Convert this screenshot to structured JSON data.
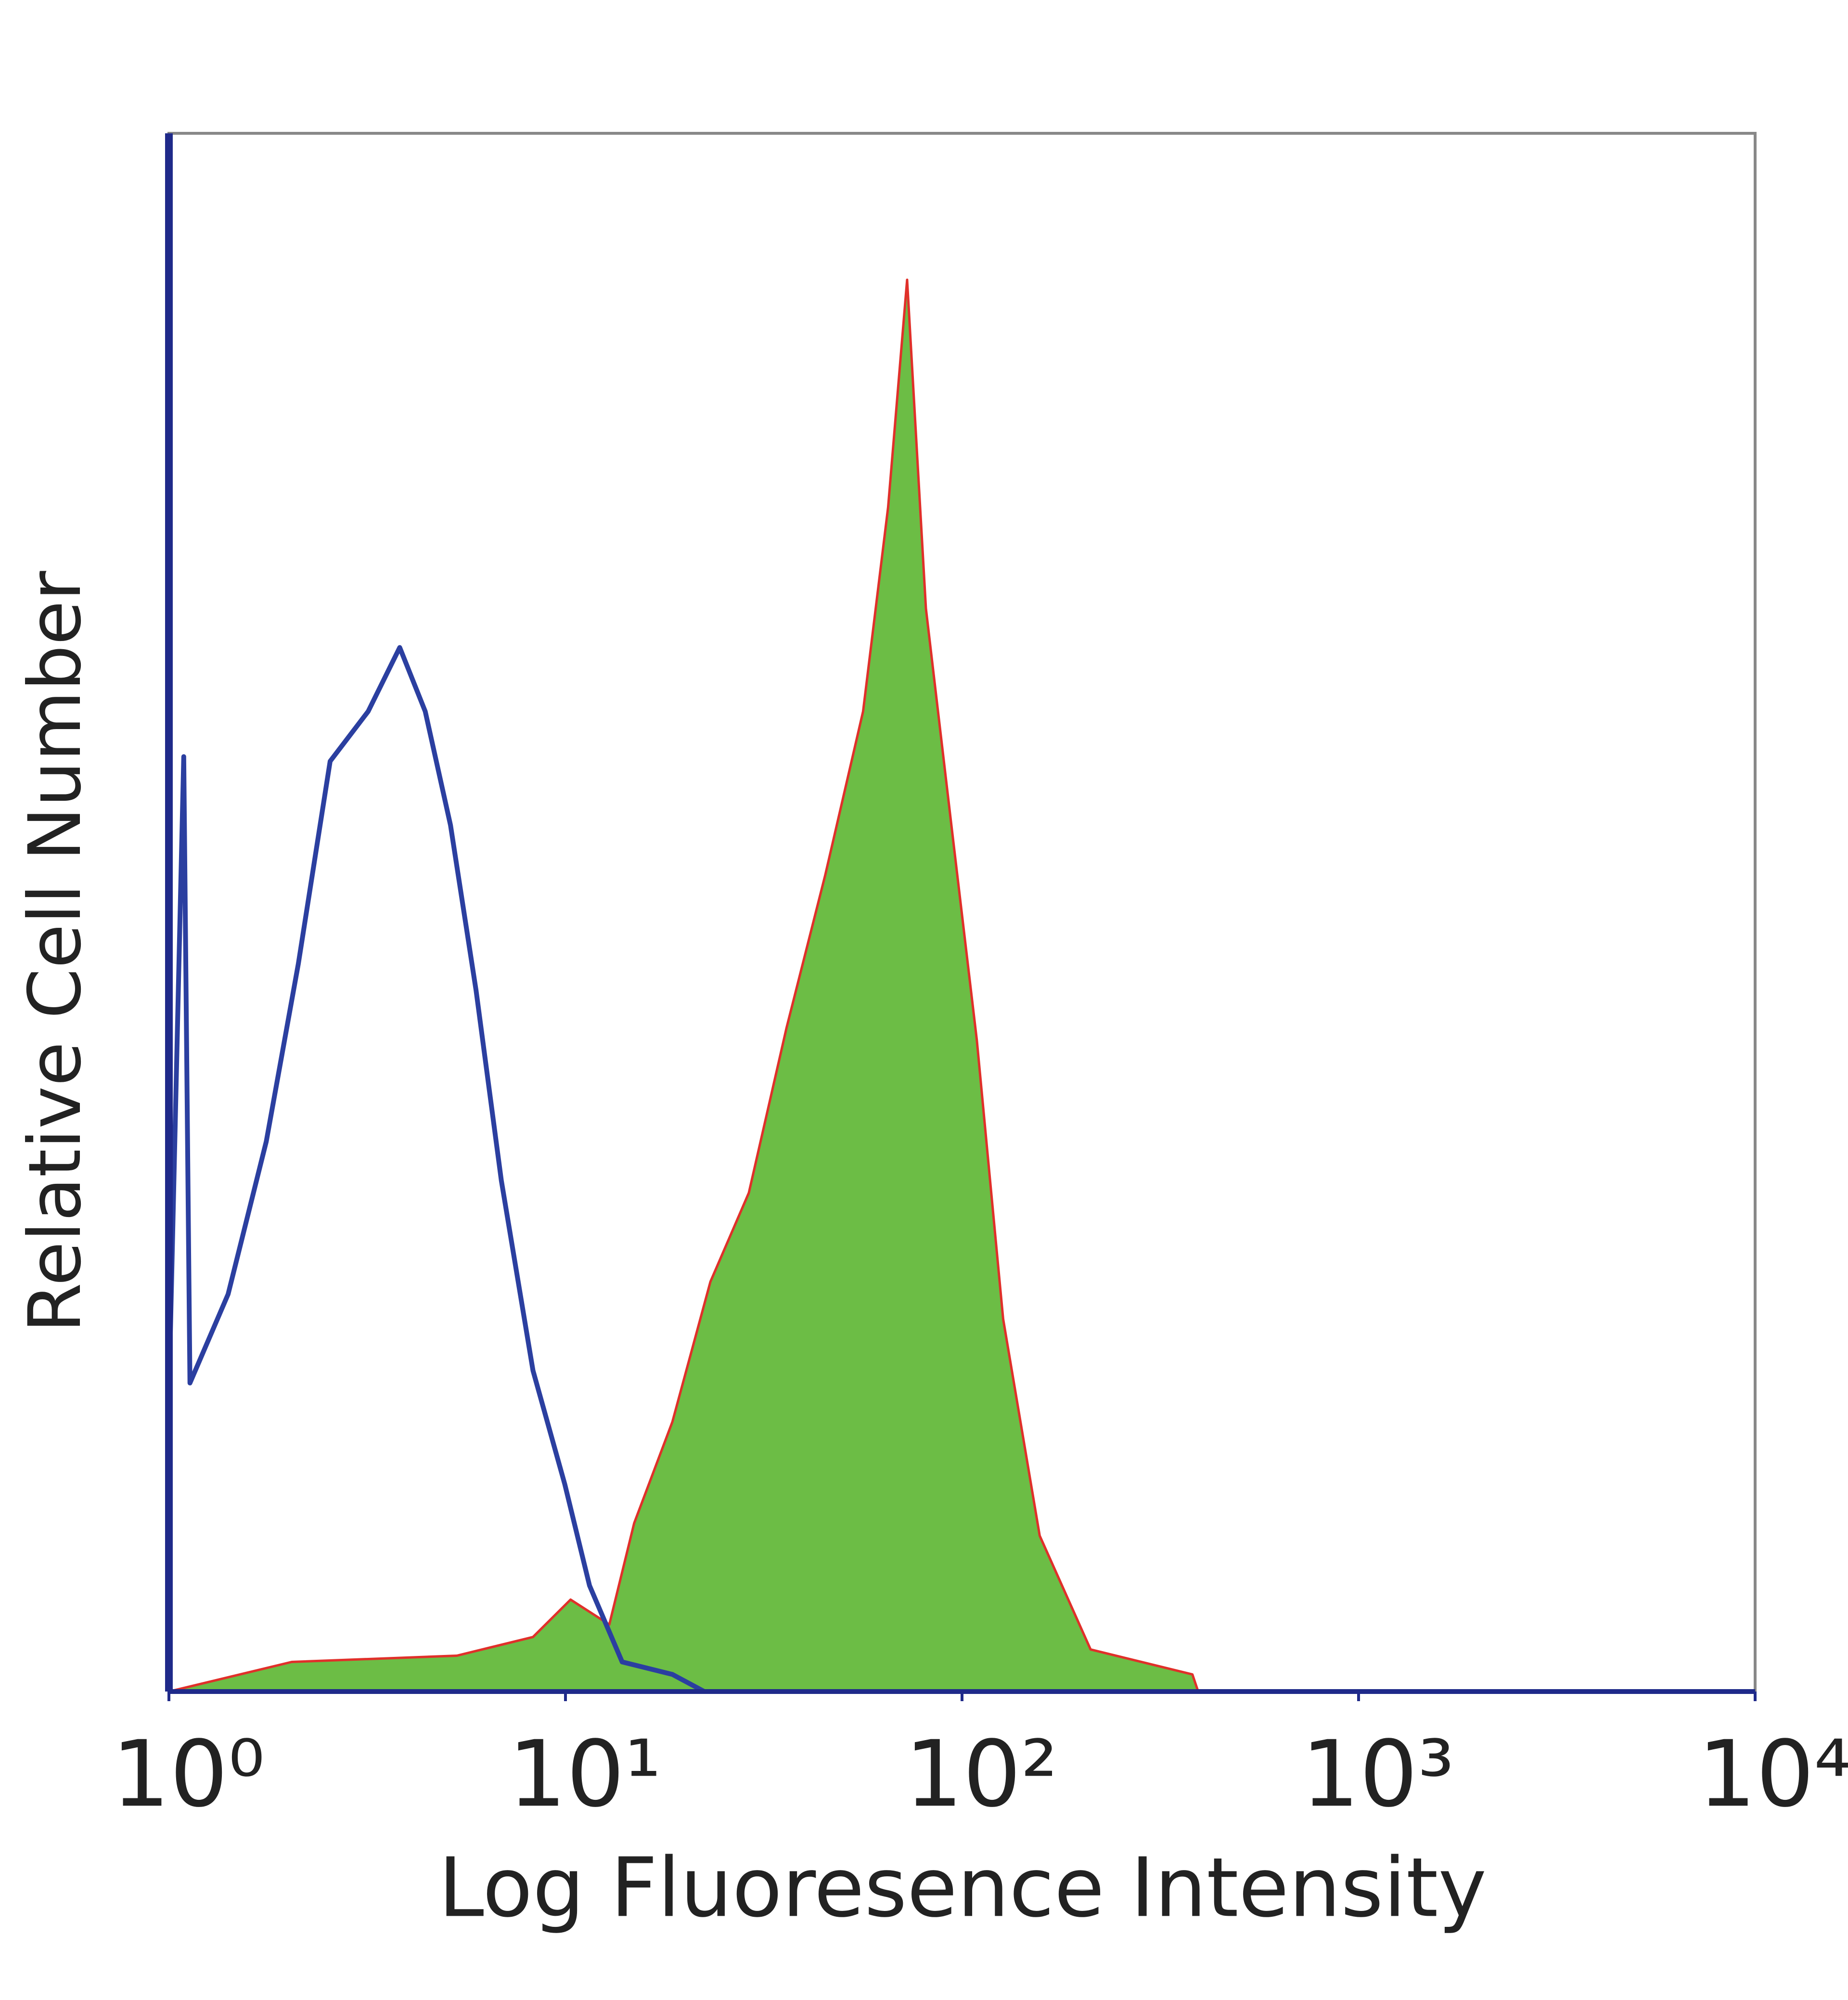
{
  "chart_data": {
    "type": "histogram-line",
    "xlabel": "Log Fluoresence Intensity",
    "ylabel": "Relative Cell Number",
    "xscale": "log",
    "xlim": [
      1,
      10000
    ],
    "xticks": [
      {
        "value": 1,
        "label": "10⁰"
      },
      {
        "value": 10,
        "label": "10¹"
      },
      {
        "value": 100,
        "label": "10²"
      },
      {
        "value": 1000,
        "label": "10³"
      },
      {
        "value": 10000,
        "label": "10⁴"
      }
    ],
    "ylim": [
      0,
      100
    ],
    "series": [
      {
        "color": "#2b3fa0",
        "fill": "none",
        "x": [
          1.0,
          1.09,
          1.13,
          1.41,
          1.76,
          2.12,
          2.55,
          3.18,
          3.82,
          4.43,
          5.13,
          5.95,
          6.89,
          8.28,
          9.96,
          11.5,
          13.9,
          18.6,
          22.4
        ],
        "values": [
          19,
          60,
          19.8,
          25.5,
          35.3,
          46.7,
          59.7,
          62.9,
          67.0,
          62.9,
          55.6,
          45.0,
          32.8,
          20.6,
          13.3,
          6.8,
          1.9,
          1.1,
          0
        ]
      },
      {
        "color": "#e0302a",
        "fill": "#6cbd45",
        "x": [
          1.0,
          2.04,
          5.32,
          8.28,
          10.3,
          12.9,
          14.9,
          18.6,
          23.2,
          29.0,
          36.1,
          45.2,
          56.3,
          65.1,
          72.7,
          81.1,
          94.0,
          109,
          127,
          157,
          211,
          381,
          394
        ],
        "values": [
          0,
          1.9,
          2.3,
          3.5,
          5.9,
          4.3,
          10.8,
          17.3,
          26.3,
          32.0,
          42.6,
          52.4,
          62.9,
          76.0,
          90.6,
          69.5,
          55.6,
          41.8,
          23.9,
          10.0,
          2.7,
          1.1,
          0
        ]
      }
    ]
  }
}
